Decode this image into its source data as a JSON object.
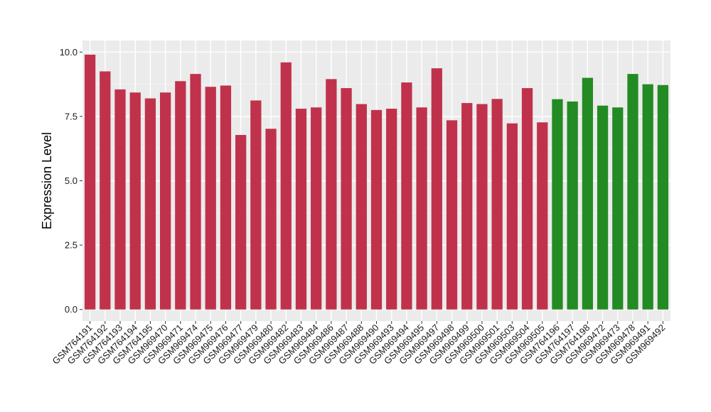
{
  "chart_data": {
    "type": "bar",
    "title": "",
    "xlabel": "",
    "ylabel": "Expression Level",
    "ylim": [
      -0.45,
      10.45
    ],
    "yticks": [
      0.0,
      2.5,
      5.0,
      7.5,
      10.0
    ],
    "ytick_labels": [
      "0.0",
      "2.5",
      "5.0",
      "7.5",
      "10.0"
    ],
    "grid": true,
    "legend": "none",
    "panel_background": "#ebebeb",
    "categories": [
      "GSM764191",
      "GSM764192",
      "GSM764193",
      "GSM764194",
      "GSM764195",
      "GSM969470",
      "GSM969471",
      "GSM969474",
      "GSM969475",
      "GSM969476",
      "GSM969477",
      "GSM969479",
      "GSM969480",
      "GSM969482",
      "GSM969483",
      "GSM969484",
      "GSM969486",
      "GSM969487",
      "GSM969488",
      "GSM969490",
      "GSM969493",
      "GSM969494",
      "GSM969495",
      "GSM969497",
      "GSM969498",
      "GSM969499",
      "GSM969500",
      "GSM969501",
      "GSM969503",
      "GSM969504",
      "GSM969505",
      "GSM764196",
      "GSM764197",
      "GSM764198",
      "GSM969472",
      "GSM969473",
      "GSM969478",
      "GSM969491",
      "GSM969492"
    ],
    "values": [
      9.9,
      9.25,
      8.55,
      8.43,
      8.2,
      8.43,
      8.87,
      9.15,
      8.65,
      8.7,
      6.78,
      8.12,
      7.02,
      9.6,
      7.8,
      7.85,
      8.95,
      8.6,
      7.98,
      7.75,
      7.8,
      8.82,
      7.85,
      9.37,
      7.35,
      8.02,
      7.98,
      8.18,
      7.23,
      8.6,
      7.27,
      8.17,
      8.08,
      9.0,
      7.92,
      7.85,
      9.15,
      8.75,
      8.72
    ],
    "colors": [
      "#c0324b",
      "#c0324b",
      "#c0324b",
      "#c0324b",
      "#c0324b",
      "#c0324b",
      "#c0324b",
      "#c0324b",
      "#c0324b",
      "#c0324b",
      "#c0324b",
      "#c0324b",
      "#c0324b",
      "#c0324b",
      "#c0324b",
      "#c0324b",
      "#c0324b",
      "#c0324b",
      "#c0324b",
      "#c0324b",
      "#c0324b",
      "#c0324b",
      "#c0324b",
      "#c0324b",
      "#c0324b",
      "#c0324b",
      "#c0324b",
      "#c0324b",
      "#c0324b",
      "#c0324b",
      "#c0324b",
      "#238b23",
      "#238b23",
      "#238b23",
      "#238b23",
      "#238b23",
      "#238b23",
      "#238b23",
      "#238b23"
    ]
  }
}
